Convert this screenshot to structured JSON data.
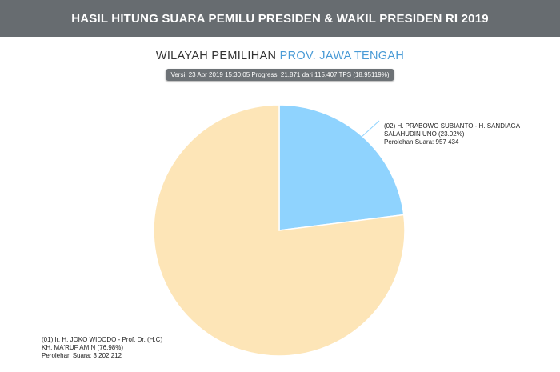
{
  "header": {
    "title": "HASIL HITUNG SUARA PEMILU PRESIDEN & WAKIL PRESIDEN RI 2019"
  },
  "region": {
    "prefix": "WILAYAH PEMILIHAN",
    "name": "PROV. JAWA TENGAH"
  },
  "version": {
    "text": "Versi: 23 Apr 2019 15:30:05 Progress: 21.871 dari 115.407 TPS (18.95119%)"
  },
  "colors": {
    "header_bg": "#676c70",
    "region_accent": "#4a9bd6",
    "candidate_01": "#fde5b7",
    "candidate_02": "#8fd3fe"
  },
  "chart_data": {
    "type": "pie",
    "title": "",
    "series": [
      {
        "id": "02",
        "label_lines": [
          "(02) H. PRABOWO SUBIANTO - H. SANDIAGA",
          "SALAHUDIN UNO (23.02%)",
          "Perolehan Suara: 957 434"
        ],
        "percent": 23.02,
        "votes": 957434,
        "color": "#8fd3fe"
      },
      {
        "id": "01",
        "label_lines": [
          "(01) Ir. H. JOKO WIDODO - Prof. Dr. (H.C)",
          "KH. MA'RUF AMIN (76.98%)",
          "Perolehan Suara: 3 202 212"
        ],
        "percent": 76.98,
        "votes": 3202212,
        "color": "#fde5b7"
      }
    ]
  }
}
